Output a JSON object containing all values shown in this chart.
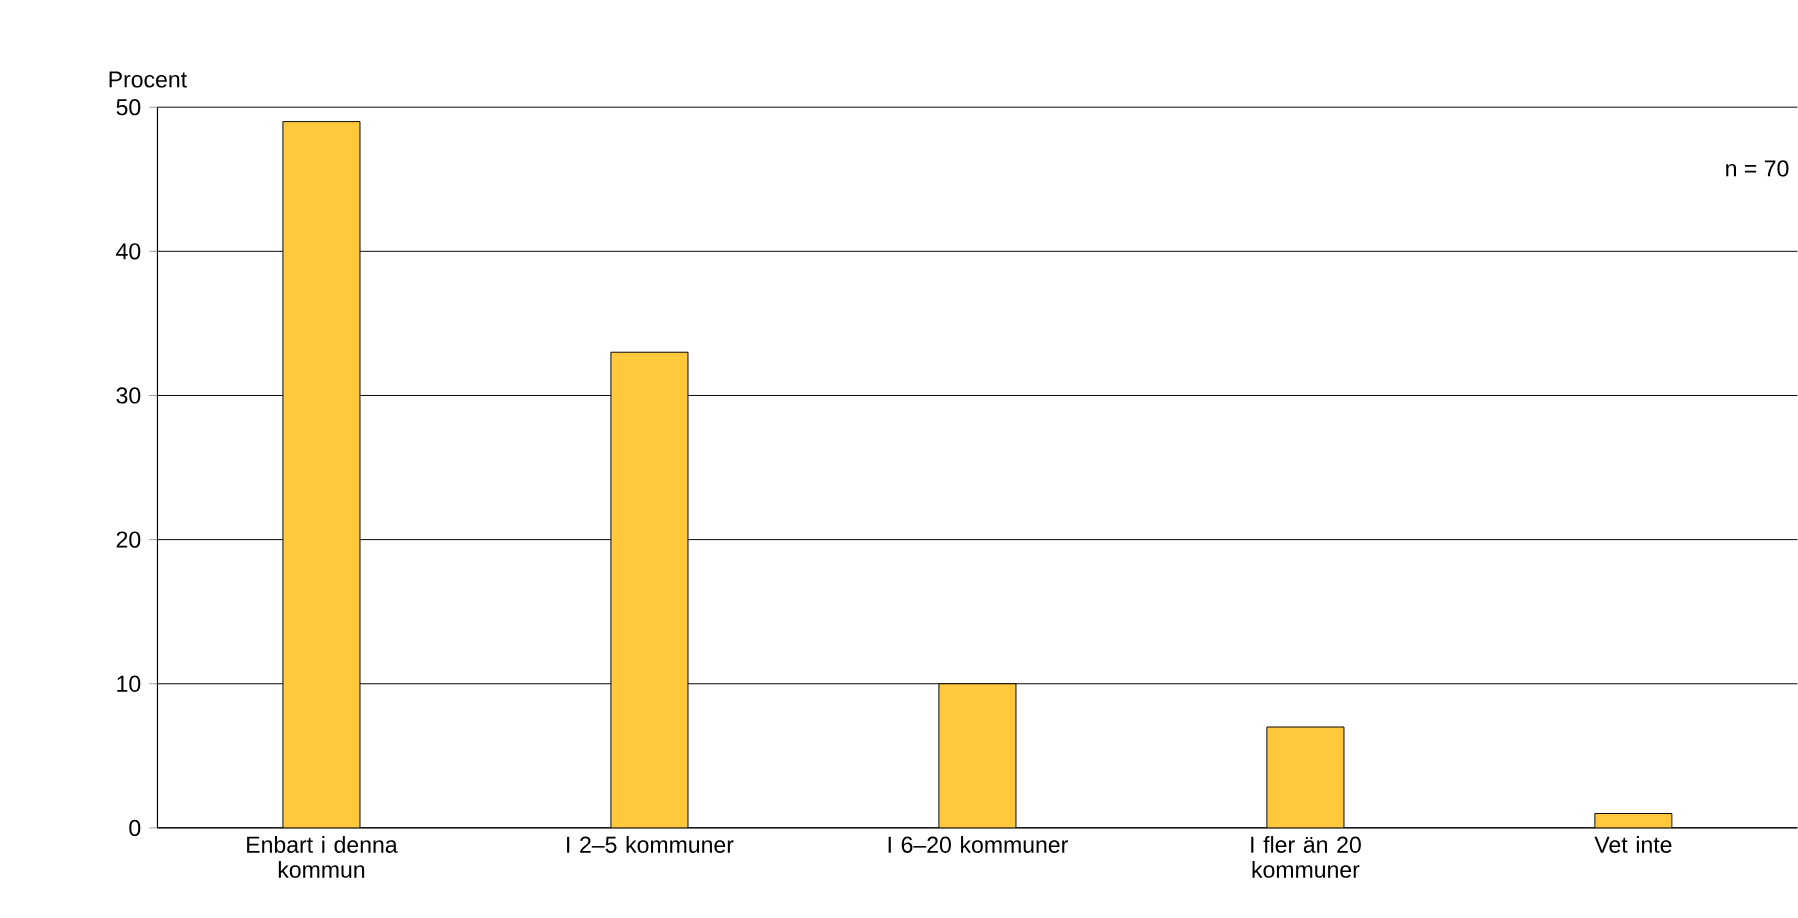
{
  "chart_data": {
    "type": "bar",
    "ylabel": "Procent",
    "categories": [
      "Enbart i denna kommun",
      "I 2–5 kommuner",
      "I 6–20 kommuner",
      "I fler än 20 kommuner",
      "Vet inte"
    ],
    "values": [
      49,
      33,
      10,
      7,
      1
    ],
    "color": "#ffc83d",
    "ylim": [
      0,
      50
    ],
    "yticks": [
      0,
      10,
      20,
      30,
      40,
      50
    ],
    "grid": "y",
    "annotations": [
      "n = 70"
    ]
  }
}
